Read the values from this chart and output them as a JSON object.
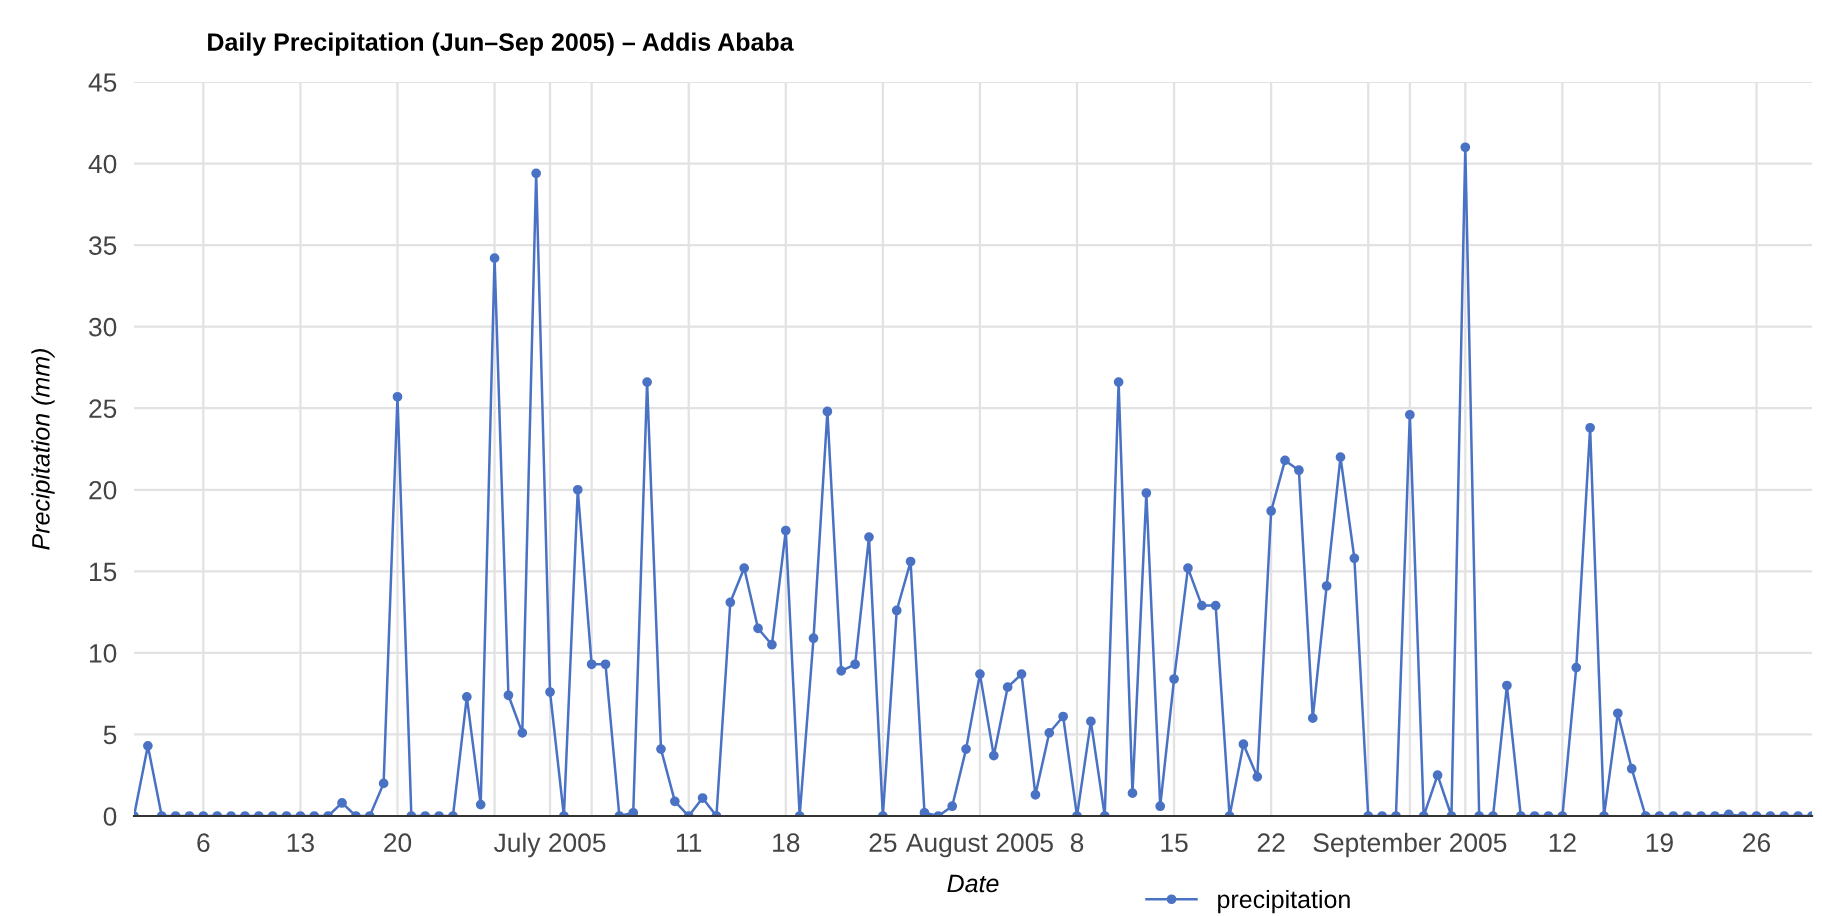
{
  "chart_data": {
    "type": "line",
    "title": "Daily Precipitation (Jun–Sep 2005) – Addis Ababa",
    "xlabel": "Date",
    "ylabel": "Precipitation (mm)",
    "x": [
      "2005-06-01",
      "2005-06-02",
      "2005-06-03",
      "2005-06-04",
      "2005-06-05",
      "2005-06-06",
      "2005-06-07",
      "2005-06-08",
      "2005-06-09",
      "2005-06-10",
      "2005-06-11",
      "2005-06-12",
      "2005-06-13",
      "2005-06-14",
      "2005-06-15",
      "2005-06-16",
      "2005-06-17",
      "2005-06-18",
      "2005-06-19",
      "2005-06-20",
      "2005-06-21",
      "2005-06-22",
      "2005-06-23",
      "2005-06-24",
      "2005-06-25",
      "2005-06-26",
      "2005-06-27",
      "2005-06-28",
      "2005-06-29",
      "2005-06-30",
      "2005-07-01",
      "2005-07-02",
      "2005-07-03",
      "2005-07-04",
      "2005-07-05",
      "2005-07-06",
      "2005-07-07",
      "2005-07-08",
      "2005-07-09",
      "2005-07-10",
      "2005-07-11",
      "2005-07-12",
      "2005-07-13",
      "2005-07-14",
      "2005-07-15",
      "2005-07-16",
      "2005-07-17",
      "2005-07-18",
      "2005-07-19",
      "2005-07-20",
      "2005-07-21",
      "2005-07-22",
      "2005-07-23",
      "2005-07-24",
      "2005-07-25",
      "2005-07-26",
      "2005-07-27",
      "2005-07-28",
      "2005-07-29",
      "2005-07-30",
      "2005-07-31",
      "2005-08-01",
      "2005-08-02",
      "2005-08-03",
      "2005-08-04",
      "2005-08-05",
      "2005-08-06",
      "2005-08-07",
      "2005-08-08",
      "2005-08-09",
      "2005-08-10",
      "2005-08-11",
      "2005-08-12",
      "2005-08-13",
      "2005-08-14",
      "2005-08-15",
      "2005-08-16",
      "2005-08-17",
      "2005-08-18",
      "2005-08-19",
      "2005-08-20",
      "2005-08-21",
      "2005-08-22",
      "2005-08-23",
      "2005-08-24",
      "2005-08-25",
      "2005-08-26",
      "2005-08-27",
      "2005-08-28",
      "2005-08-29",
      "2005-08-30",
      "2005-08-31",
      "2005-09-01",
      "2005-09-02",
      "2005-09-03",
      "2005-09-04",
      "2005-09-05",
      "2005-09-06",
      "2005-09-07",
      "2005-09-08",
      "2005-09-09",
      "2005-09-10",
      "2005-09-11",
      "2005-09-12",
      "2005-09-13",
      "2005-09-14",
      "2005-09-15",
      "2005-09-16",
      "2005-09-17",
      "2005-09-18",
      "2005-09-19",
      "2005-09-20",
      "2005-09-21",
      "2005-09-22",
      "2005-09-23",
      "2005-09-24",
      "2005-09-25",
      "2005-09-26",
      "2005-09-27",
      "2005-09-28",
      "2005-09-29",
      "2005-09-30"
    ],
    "series": [
      {
        "name": "precipitation",
        "color": "#4a72c4",
        "values": [
          0,
          4.3,
          0,
          0,
          0,
          0,
          0,
          0,
          0,
          0,
          0,
          0,
          0,
          0,
          0,
          0.8,
          0,
          0,
          2,
          25.7,
          0,
          0,
          0,
          0,
          7.3,
          0.7,
          34.2,
          7.4,
          5.1,
          39.4,
          7.6,
          0,
          20,
          9.3,
          9.3,
          0,
          0.2,
          26.6,
          4.1,
          0.9,
          0,
          1.1,
          0,
          13.1,
          15.2,
          11.5,
          10.5,
          17.5,
          0,
          10.9,
          24.8,
          8.9,
          9.3,
          17.1,
          0,
          12.6,
          15.6,
          0.2,
          0,
          0.6,
          4.1,
          8.7,
          3.7,
          7.9,
          8.7,
          1.3,
          5.1,
          6.1,
          0,
          5.8,
          0,
          26.6,
          1.4,
          19.8,
          0.6,
          8.4,
          15.2,
          12.9,
          12.9,
          0,
          4.4,
          2.4,
          18.7,
          21.8,
          21.2,
          6.0,
          14.1,
          22.0,
          15.8,
          0,
          0,
          0,
          24.6,
          0,
          2.5,
          0,
          41.0,
          0,
          0,
          8.0,
          0,
          0,
          0,
          0,
          9.1,
          23.8,
          0,
          6.3,
          2.9,
          0,
          0,
          0,
          0,
          0,
          0,
          0.1,
          0,
          0,
          0,
          0,
          0,
          0
        ]
      }
    ],
    "xlim": [
      "2005-06-01",
      "2005-09-30"
    ],
    "xticks": [
      {
        "value": "2005-06-06",
        "label": "6"
      },
      {
        "value": "2005-06-13",
        "label": "13"
      },
      {
        "value": "2005-06-20",
        "label": "20"
      },
      {
        "value": "2005-06-27",
        "label": null
      },
      {
        "value": "2005-07-01",
        "label": "July 2005"
      },
      {
        "value": "2005-07-04",
        "label": null
      },
      {
        "value": "2005-07-11",
        "label": "11"
      },
      {
        "value": "2005-07-18",
        "label": "18"
      },
      {
        "value": "2005-07-25",
        "label": "25"
      },
      {
        "value": "2005-08-01",
        "label": "August 2005"
      },
      {
        "value": "2005-08-08",
        "label": "8"
      },
      {
        "value": "2005-08-15",
        "label": "15"
      },
      {
        "value": "2005-08-22",
        "label": "22"
      },
      {
        "value": "2005-08-29",
        "label": null
      },
      {
        "value": "2005-09-01",
        "label": "September 2005"
      },
      {
        "value": "2005-09-05",
        "label": null
      },
      {
        "value": "2005-09-12",
        "label": "12"
      },
      {
        "value": "2005-09-19",
        "label": "19"
      },
      {
        "value": "2005-09-26",
        "label": "26"
      }
    ],
    "ylim": [
      0,
      45
    ],
    "yticks": [
      0,
      5,
      10,
      15,
      20,
      25,
      30,
      35,
      40,
      45
    ],
    "grid": true,
    "legend": "bottom",
    "marker": "circle",
    "line_style": "solid"
  }
}
